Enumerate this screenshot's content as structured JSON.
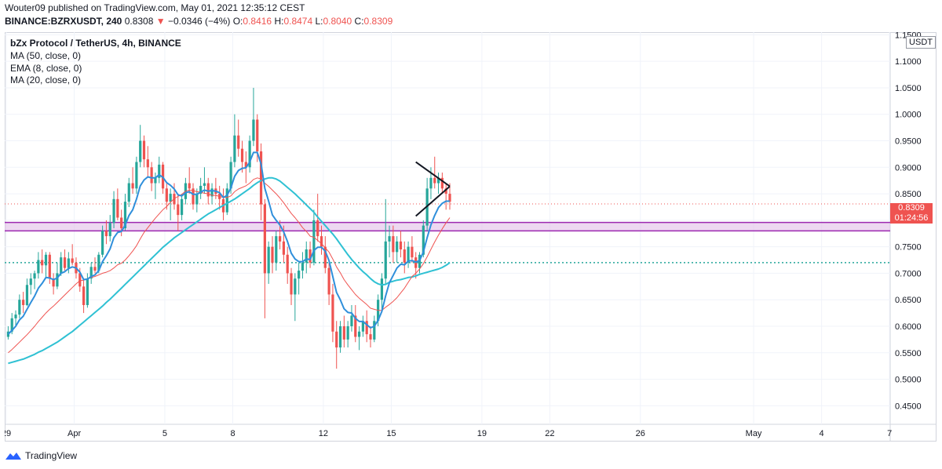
{
  "header": {
    "publisher": "Wouter09 published on TradingView.com, May 01, 2021 12:35:12 CEST",
    "symbol": "BINANCE:BZRXUSDT, 240",
    "price": "0.8308",
    "change_marker": "▼",
    "change": "−0.0346 (−4%)",
    "o_label": "O:",
    "o_val": "0.8416",
    "h_label": "H:",
    "h_val": "0.8474",
    "l_label": "L:",
    "l_val": "0.8040",
    "c_label": "C:",
    "c_val": "0.8309"
  },
  "legend": {
    "title": "bZx Protocol / TetherUS, 4h, BINANCE",
    "ma50": "MA (50, close, 0)",
    "ema8": "EMA (8, close, 0)",
    "ma20": "MA (20, close, 0)"
  },
  "currency": "USDT",
  "price_tag": {
    "price": "0.8309",
    "countdown": "01:24:56"
  },
  "footer": {
    "brand": "TradingView"
  },
  "colors": {
    "up": "#26a69a",
    "down": "#ef5350",
    "ma50": "#2fc1d3",
    "ema8": "#2f8fdb",
    "ma20": "#ef5350",
    "zone_fill": "#e1bee7",
    "zone_line": "#9c27b0",
    "support_line": "#26a69a",
    "trend_lines": "#131722"
  },
  "chart_data": {
    "type": "candlestick",
    "y_ticks": [
      "0.4500",
      "0.5000",
      "0.5500",
      "0.6000",
      "0.6500",
      "0.7000",
      "0.7500",
      "0.8000",
      "0.8500",
      "0.9000",
      "0.9500",
      "1.0000",
      "1.0500",
      "1.1000",
      "1.1500"
    ],
    "ylim": [
      0.415,
      1.155
    ],
    "x_ticks": [
      {
        "label": "29",
        "day": 0
      },
      {
        "label": "Apr",
        "day": 3
      },
      {
        "label": "5",
        "day": 7
      },
      {
        "label": "8",
        "day": 10
      },
      {
        "label": "12",
        "day": 14
      },
      {
        "label": "15",
        "day": 17
      },
      {
        "label": "19",
        "day": 21
      },
      {
        "label": "22",
        "day": 24
      },
      {
        "label": "26",
        "day": 28
      },
      {
        "label": "May",
        "day": 33
      },
      {
        "label": "4",
        "day": 36
      },
      {
        "label": "7",
        "day": 39
      }
    ],
    "candles": [
      [
        0.58,
        0.6,
        0.575,
        0.59
      ],
      [
        0.59,
        0.625,
        0.585,
        0.615
      ],
      [
        0.615,
        0.63,
        0.6,
        0.622
      ],
      [
        0.622,
        0.66,
        0.615,
        0.65
      ],
      [
        0.65,
        0.665,
        0.625,
        0.64
      ],
      [
        0.64,
        0.69,
        0.638,
        0.678
      ],
      [
        0.678,
        0.7,
        0.66,
        0.69
      ],
      [
        0.69,
        0.705,
        0.67,
        0.7
      ],
      [
        0.7,
        0.74,
        0.69,
        0.725
      ],
      [
        0.725,
        0.745,
        0.7,
        0.715
      ],
      [
        0.715,
        0.74,
        0.69,
        0.735
      ],
      [
        0.735,
        0.74,
        0.68,
        0.69
      ],
      [
        0.69,
        0.7,
        0.66,
        0.675
      ],
      [
        0.675,
        0.72,
        0.67,
        0.7
      ],
      [
        0.7,
        0.74,
        0.695,
        0.73
      ],
      [
        0.73,
        0.745,
        0.705,
        0.71
      ],
      [
        0.71,
        0.74,
        0.7,
        0.728
      ],
      [
        0.728,
        0.755,
        0.715,
        0.72
      ],
      [
        0.72,
        0.73,
        0.69,
        0.7
      ],
      [
        0.7,
        0.71,
        0.665,
        0.675
      ],
      [
        0.675,
        0.69,
        0.625,
        0.64
      ],
      [
        0.64,
        0.7,
        0.635,
        0.69
      ],
      [
        0.69,
        0.72,
        0.68,
        0.712
      ],
      [
        0.712,
        0.73,
        0.7,
        0.705
      ],
      [
        0.705,
        0.74,
        0.7,
        0.735
      ],
      [
        0.735,
        0.79,
        0.73,
        0.78
      ],
      [
        0.78,
        0.8,
        0.755,
        0.77
      ],
      [
        0.77,
        0.81,
        0.76,
        0.795
      ],
      [
        0.795,
        0.855,
        0.785,
        0.84
      ],
      [
        0.84,
        0.86,
        0.8,
        0.805
      ],
      [
        0.805,
        0.82,
        0.77,
        0.785
      ],
      [
        0.785,
        0.85,
        0.78,
        0.835
      ],
      [
        0.835,
        0.88,
        0.825,
        0.87
      ],
      [
        0.87,
        0.9,
        0.85,
        0.86
      ],
      [
        0.86,
        0.92,
        0.85,
        0.91
      ],
      [
        0.91,
        0.98,
        0.9,
        0.95
      ],
      [
        0.95,
        0.96,
        0.9,
        0.915
      ],
      [
        0.915,
        0.94,
        0.88,
        0.9
      ],
      [
        0.9,
        0.91,
        0.855,
        0.87
      ],
      [
        0.87,
        0.89,
        0.84,
        0.88
      ],
      [
        0.88,
        0.92,
        0.87,
        0.905
      ],
      [
        0.905,
        0.91,
        0.85,
        0.86
      ],
      [
        0.86,
        0.87,
        0.82,
        0.835
      ],
      [
        0.835,
        0.86,
        0.8,
        0.85
      ],
      [
        0.85,
        0.87,
        0.82,
        0.83
      ],
      [
        0.83,
        0.85,
        0.78,
        0.81
      ],
      [
        0.81,
        0.85,
        0.8,
        0.84
      ],
      [
        0.84,
        0.88,
        0.83,
        0.87
      ],
      [
        0.87,
        0.9,
        0.85,
        0.86
      ],
      [
        0.86,
        0.87,
        0.82,
        0.83
      ],
      [
        0.83,
        0.86,
        0.815,
        0.85
      ],
      [
        0.85,
        0.88,
        0.84,
        0.865
      ],
      [
        0.865,
        0.9,
        0.85,
        0.87
      ],
      [
        0.87,
        0.88,
        0.83,
        0.845
      ],
      [
        0.845,
        0.87,
        0.83,
        0.86
      ],
      [
        0.86,
        0.88,
        0.84,
        0.85
      ],
      [
        0.85,
        0.865,
        0.82,
        0.84
      ],
      [
        0.84,
        0.86,
        0.8,
        0.815
      ],
      [
        0.815,
        0.87,
        0.81,
        0.86
      ],
      [
        0.86,
        0.92,
        0.85,
        0.91
      ],
      [
        0.91,
        1.0,
        0.9,
        0.96
      ],
      [
        0.96,
        0.99,
        0.92,
        0.935
      ],
      [
        0.935,
        0.95,
        0.89,
        0.91
      ],
      [
        0.91,
        0.93,
        0.87,
        0.9
      ],
      [
        0.9,
        0.96,
        0.89,
        0.95
      ],
      [
        0.95,
        1.05,
        0.94,
        0.99
      ],
      [
        0.99,
        1.0,
        0.91,
        0.93
      ],
      [
        0.93,
        0.945,
        0.8,
        0.83
      ],
      [
        0.83,
        0.84,
        0.615,
        0.7
      ],
      [
        0.7,
        0.76,
        0.68,
        0.75
      ],
      [
        0.75,
        0.77,
        0.7,
        0.72
      ],
      [
        0.72,
        0.78,
        0.705,
        0.77
      ],
      [
        0.77,
        0.8,
        0.745,
        0.76
      ],
      [
        0.76,
        0.79,
        0.72,
        0.735
      ],
      [
        0.735,
        0.75,
        0.68,
        0.7
      ],
      [
        0.7,
        0.71,
        0.64,
        0.66
      ],
      [
        0.66,
        0.7,
        0.61,
        0.69
      ],
      [
        0.69,
        0.72,
        0.66,
        0.705
      ],
      [
        0.705,
        0.74,
        0.69,
        0.72
      ],
      [
        0.72,
        0.76,
        0.7,
        0.745
      ],
      [
        0.745,
        0.76,
        0.71,
        0.72
      ],
      [
        0.72,
        0.82,
        0.715,
        0.8
      ],
      [
        0.8,
        0.85,
        0.76,
        0.77
      ],
      [
        0.77,
        0.79,
        0.735,
        0.75
      ],
      [
        0.75,
        0.77,
        0.7,
        0.71
      ],
      [
        0.71,
        0.72,
        0.64,
        0.66
      ],
      [
        0.66,
        0.68,
        0.57,
        0.59
      ],
      [
        0.59,
        0.61,
        0.52,
        0.56
      ],
      [
        0.56,
        0.61,
        0.55,
        0.6
      ],
      [
        0.6,
        0.62,
        0.56,
        0.575
      ],
      [
        0.575,
        0.61,
        0.56,
        0.6
      ],
      [
        0.6,
        0.64,
        0.59,
        0.62
      ],
      [
        0.62,
        0.64,
        0.57,
        0.58
      ],
      [
        0.58,
        0.6,
        0.555,
        0.59
      ],
      [
        0.59,
        0.62,
        0.58,
        0.61
      ],
      [
        0.61,
        0.63,
        0.57,
        0.585
      ],
      [
        0.585,
        0.6,
        0.56,
        0.575
      ],
      [
        0.575,
        0.62,
        0.57,
        0.61
      ],
      [
        0.61,
        0.66,
        0.6,
        0.65
      ],
      [
        0.65,
        0.7,
        0.63,
        0.69
      ],
      [
        0.69,
        0.84,
        0.68,
        0.76
      ],
      [
        0.76,
        0.79,
        0.73,
        0.77
      ],
      [
        0.77,
        0.79,
        0.72,
        0.74
      ],
      [
        0.74,
        0.77,
        0.72,
        0.76
      ],
      [
        0.76,
        0.78,
        0.73,
        0.745
      ],
      [
        0.745,
        0.76,
        0.7,
        0.72
      ],
      [
        0.72,
        0.76,
        0.71,
        0.75
      ],
      [
        0.75,
        0.77,
        0.72,
        0.73
      ],
      [
        0.73,
        0.74,
        0.69,
        0.71
      ],
      [
        0.71,
        0.74,
        0.7,
        0.735
      ],
      [
        0.735,
        0.8,
        0.73,
        0.79
      ],
      [
        0.79,
        0.88,
        0.78,
        0.86
      ],
      [
        0.86,
        0.9,
        0.84,
        0.88
      ],
      [
        0.88,
        0.92,
        0.86,
        0.87
      ],
      [
        0.87,
        0.89,
        0.85,
        0.88
      ],
      [
        0.88,
        0.89,
        0.85,
        0.86
      ],
      [
        0.86,
        0.87,
        0.82,
        0.85
      ],
      [
        0.85,
        0.87,
        0.82,
        0.835
      ]
    ],
    "ema8": [
      0.585,
      0.592,
      0.6,
      0.612,
      0.619,
      0.632,
      0.645,
      0.657,
      0.672,
      0.681,
      0.692,
      0.691,
      0.688,
      0.691,
      0.7,
      0.703,
      0.709,
      0.712,
      0.71,
      0.702,
      0.688,
      0.689,
      0.694,
      0.697,
      0.705,
      0.722,
      0.733,
      0.746,
      0.767,
      0.777,
      0.779,
      0.791,
      0.809,
      0.82,
      0.84,
      0.865,
      0.876,
      0.882,
      0.88,
      0.88,
      0.886,
      0.881,
      0.871,
      0.866,
      0.859,
      0.848,
      0.846,
      0.852,
      0.854,
      0.849,
      0.849,
      0.853,
      0.857,
      0.855,
      0.856,
      0.855,
      0.852,
      0.843,
      0.847,
      0.861,
      0.883,
      0.894,
      0.898,
      0.899,
      0.91,
      0.928,
      0.928,
      0.906,
      0.86,
      0.836,
      0.81,
      0.8,
      0.791,
      0.778,
      0.76,
      0.738,
      0.727,
      0.722,
      0.722,
      0.727,
      0.726,
      0.743,
      0.749,
      0.749,
      0.742,
      0.724,
      0.694,
      0.664,
      0.65,
      0.633,
      0.626,
      0.625,
      0.615,
      0.609,
      0.609,
      0.603,
      0.597,
      0.6,
      0.611,
      0.628,
      0.657,
      0.682,
      0.696,
      0.71,
      0.717,
      0.716,
      0.723,
      0.724,
      0.721,
      0.724,
      0.74,
      0.767,
      0.791,
      0.809,
      0.824,
      0.832,
      0.836,
      0.836
    ],
    "ma20": [
      0.55,
      0.556,
      0.563,
      0.57,
      0.577,
      0.584,
      0.592,
      0.6,
      0.609,
      0.617,
      0.625,
      0.632,
      0.638,
      0.645,
      0.652,
      0.659,
      0.666,
      0.673,
      0.68,
      0.686,
      0.687,
      0.69,
      0.692,
      0.694,
      0.697,
      0.7,
      0.702,
      0.705,
      0.71,
      0.716,
      0.719,
      0.725,
      0.733,
      0.742,
      0.752,
      0.765,
      0.777,
      0.786,
      0.795,
      0.804,
      0.812,
      0.82,
      0.826,
      0.834,
      0.841,
      0.845,
      0.849,
      0.855,
      0.857,
      0.856,
      0.854,
      0.853,
      0.851,
      0.85,
      0.847,
      0.847,
      0.845,
      0.843,
      0.843,
      0.846,
      0.854,
      0.859,
      0.862,
      0.865,
      0.87,
      0.877,
      0.88,
      0.878,
      0.87,
      0.864,
      0.857,
      0.85,
      0.842,
      0.833,
      0.823,
      0.813,
      0.805,
      0.796,
      0.786,
      0.779,
      0.77,
      0.768,
      0.762,
      0.756,
      0.748,
      0.74,
      0.727,
      0.712,
      0.701,
      0.688,
      0.678,
      0.669,
      0.66,
      0.653,
      0.647,
      0.641,
      0.634,
      0.632,
      0.63,
      0.63,
      0.636,
      0.641,
      0.647,
      0.654,
      0.663,
      0.672,
      0.683,
      0.694,
      0.7,
      0.708,
      0.718,
      0.731,
      0.745,
      0.759,
      0.772,
      0.784,
      0.795,
      0.805
    ],
    "ma50": [
      0.53,
      0.532,
      0.534,
      0.536,
      0.538,
      0.541,
      0.544,
      0.547,
      0.551,
      0.554,
      0.558,
      0.562,
      0.566,
      0.57,
      0.575,
      0.58,
      0.585,
      0.59,
      0.596,
      0.602,
      0.608,
      0.614,
      0.62,
      0.626,
      0.632,
      0.638,
      0.645,
      0.651,
      0.658,
      0.665,
      0.672,
      0.679,
      0.686,
      0.693,
      0.7,
      0.707,
      0.714,
      0.721,
      0.728,
      0.735,
      0.742,
      0.749,
      0.755,
      0.761,
      0.767,
      0.772,
      0.777,
      0.782,
      0.787,
      0.792,
      0.797,
      0.802,
      0.807,
      0.812,
      0.816,
      0.82,
      0.824,
      0.828,
      0.832,
      0.836,
      0.84,
      0.845,
      0.85,
      0.855,
      0.86,
      0.866,
      0.871,
      0.875,
      0.878,
      0.88,
      0.88,
      0.878,
      0.874,
      0.868,
      0.862,
      0.856,
      0.85,
      0.843,
      0.836,
      0.829,
      0.822,
      0.815,
      0.806,
      0.798,
      0.79,
      0.782,
      0.774,
      0.765,
      0.755,
      0.745,
      0.735,
      0.726,
      0.718,
      0.71,
      0.703,
      0.697,
      0.69,
      0.684,
      0.68,
      0.678,
      0.679,
      0.683,
      0.685,
      0.687,
      0.688,
      0.69,
      0.692,
      0.693,
      0.695,
      0.698,
      0.7,
      0.702,
      0.704,
      0.706,
      0.708,
      0.711,
      0.715,
      0.72
    ],
    "last_price": 0.8309,
    "horizontal_line": 0.72,
    "zone": [
      0.78,
      0.796
    ],
    "triangle": {
      "upper": [
        [
          108,
          0.91
        ],
        [
          117,
          0.864
        ]
      ],
      "lower": [
        [
          108,
          0.808
        ],
        [
          117,
          0.864
        ]
      ]
    }
  }
}
